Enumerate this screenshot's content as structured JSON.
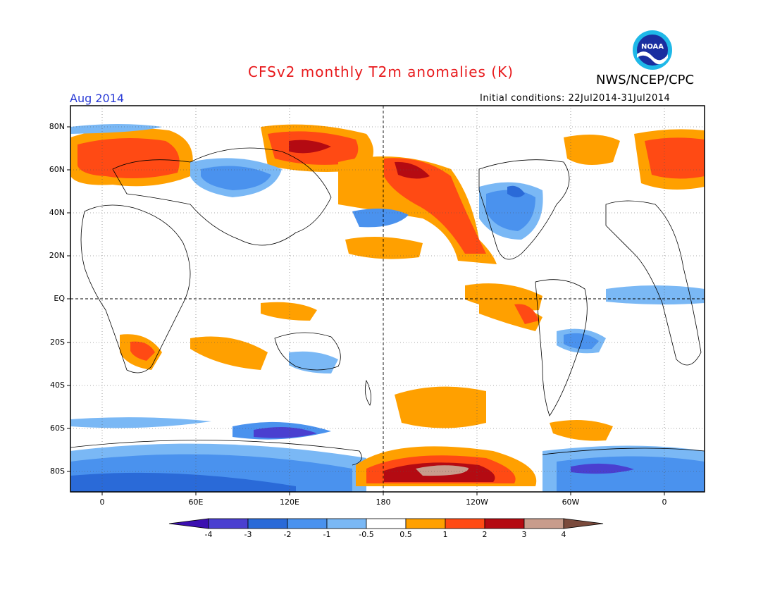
{
  "header": {
    "title": "CFSv2 monthly T2m anomalies (K)",
    "org": "NWS/NCEP/CPC",
    "month": "Aug 2014",
    "initial_conditions": "Initial conditions: 22Jul2014-31Jul2014",
    "logo_text": "NOAA"
  },
  "map": {
    "projection": "cylindrical equidistant",
    "y_ticks": [
      "80N",
      "60N",
      "40N",
      "20N",
      "EQ",
      "20S",
      "40S",
      "60S",
      "80S"
    ],
    "x_ticks": [
      "0",
      "60E",
      "120E",
      "180",
      "120W",
      "60W",
      "0"
    ],
    "dashed_lines": [
      "EQ",
      "180"
    ]
  },
  "colorbar": {
    "levels": [
      "-4",
      "-3",
      "-2",
      "-1",
      "-0.5",
      "0.5",
      "1",
      "2",
      "3",
      "4"
    ],
    "colors": [
      "#3b0fb0",
      "#4a3fd0",
      "#2a6ad8",
      "#4a92ee",
      "#7ab8f5",
      "#ffffff",
      "#ffa000",
      "#ff4a14",
      "#b40a12",
      "#c89c8c",
      "#7a4a3c"
    ]
  },
  "colors": {
    "title": "#e8191c",
    "month": "#2a3bd6",
    "cold": "#4a92ee",
    "warm": "#ff4a14"
  }
}
